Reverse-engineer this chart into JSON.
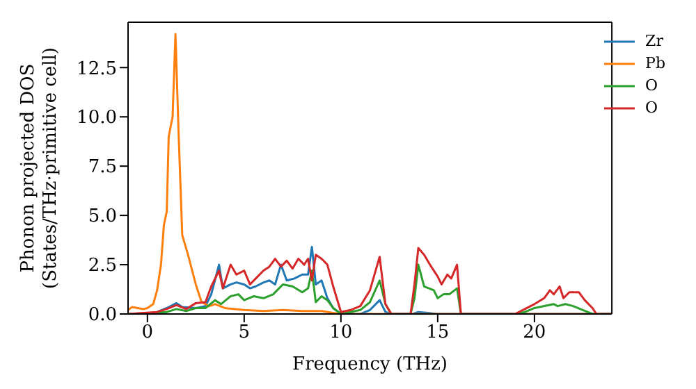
{
  "chart_data": {
    "type": "line",
    "xlabel": "Frequency (THz)",
    "ylabel": "Phonon projected DOS\n(States/THz·primitive cell)",
    "xlim": [
      -1,
      24
    ],
    "ylim": [
      0,
      14.8
    ],
    "xticks": [
      0,
      5,
      10,
      15,
      20
    ],
    "yticks": [
      {
        "value": 0,
        "label": "0.0"
      },
      {
        "value": 2.5,
        "label": "2.5"
      },
      {
        "value": 5,
        "label": "5.0"
      },
      {
        "value": 7.5,
        "label": "7.5"
      },
      {
        "value": 10,
        "label": "10.0"
      },
      {
        "value": 12.5,
        "label": "12.5"
      }
    ],
    "legend": "top right",
    "marker": "none",
    "line_style": "solid",
    "series": [
      {
        "name": "Zr",
        "color": "#1f77b4",
        "x": [
          -1,
          0,
          0.5,
          1,
          1.5,
          1.8,
          2.5,
          3,
          3.3,
          3.7,
          3.9,
          4.3,
          4.6,
          5,
          5.3,
          5.6,
          6,
          6.3,
          6.6,
          6.9,
          7.2,
          7.6,
          8,
          8.3,
          8.5,
          8.7,
          9,
          9.3,
          9.6,
          10,
          11,
          11.5,
          12,
          12.3,
          12.6,
          13.7,
          14,
          14.5,
          15,
          24
        ],
        "values": [
          0,
          0,
          0.1,
          0.3,
          0.55,
          0.35,
          0.3,
          0.4,
          1.0,
          2.5,
          1.3,
          1.5,
          1.6,
          1.5,
          1.3,
          1.4,
          1.6,
          1.7,
          1.5,
          2.5,
          1.7,
          1.8,
          2.0,
          2.0,
          3.4,
          1.5,
          1.7,
          0.8,
          0.3,
          0,
          0,
          0.2,
          0.7,
          0.1,
          0,
          0,
          0.1,
          0.05,
          0,
          0
        ]
      },
      {
        "name": "Pb",
        "color": "#ff7f0e",
        "x": [
          -1,
          -0.8,
          -0.5,
          -0.2,
          0,
          0.3,
          0.5,
          0.7,
          0.85,
          1.0,
          1.1,
          1.3,
          1.45,
          1.6,
          1.8,
          2.1,
          2.5,
          2.8,
          3.2,
          3.5,
          4,
          5,
          6,
          7,
          8,
          9,
          9.6,
          10,
          24
        ],
        "values": [
          0.2,
          0.35,
          0.3,
          0.25,
          0.3,
          0.5,
          1.2,
          2.5,
          4.5,
          5.2,
          9.0,
          10.0,
          14.2,
          9.5,
          4.0,
          3.0,
          1.5,
          0.6,
          0.4,
          0.5,
          0.3,
          0.2,
          0.15,
          0.2,
          0.15,
          0.15,
          0.05,
          0,
          0
        ]
      },
      {
        "name": "O",
        "color": "#2ca02c",
        "x": [
          -1,
          1,
          1.5,
          2,
          2.5,
          3,
          3.5,
          3.8,
          4.3,
          4.7,
          5,
          5.5,
          6,
          6.5,
          7,
          7.5,
          8,
          8.3,
          8.5,
          8.7,
          9,
          9.3,
          9.6,
          10,
          11,
          11.5,
          12,
          12.3,
          12.6,
          13.6,
          13.8,
          14,
          14.3,
          14.8,
          15,
          15.3,
          15.6,
          16,
          16.2,
          19,
          19.5,
          20,
          21,
          21.2,
          21.6,
          22,
          22.5,
          23,
          24
        ],
        "values": [
          0,
          0.1,
          0.25,
          0.15,
          0.3,
          0.3,
          0.7,
          0.5,
          0.9,
          1.0,
          0.7,
          0.9,
          0.8,
          1.0,
          1.5,
          1.4,
          1.1,
          1.3,
          2.2,
          0.6,
          0.9,
          0.7,
          0.3,
          0,
          0.2,
          0.6,
          1.7,
          0.5,
          0,
          0,
          0.8,
          2.5,
          1.4,
          1.2,
          0.8,
          1.0,
          1.0,
          1.3,
          0,
          0,
          0.1,
          0.3,
          0.5,
          0.4,
          0.5,
          0.4,
          0.2,
          0,
          0
        ]
      },
      {
        "name": "O",
        "color": "#d62728",
        "x": [
          -1,
          0.5,
          1,
          1.5,
          2,
          2.5,
          3,
          3.3,
          3.7,
          3.9,
          4.3,
          4.6,
          5,
          5.3,
          5.6,
          6,
          6.3,
          6.6,
          6.9,
          7.2,
          7.5,
          7.8,
          8.1,
          8.3,
          8.5,
          8.7,
          9,
          9.3,
          9.6,
          10,
          10.5,
          11,
          11.5,
          12,
          12.3,
          12.6,
          13.6,
          13.8,
          14,
          14.3,
          14.6,
          14.8,
          15,
          15.2,
          15.5,
          15.7,
          16,
          16.2,
          19,
          20,
          20.5,
          20.8,
          21,
          21.3,
          21.5,
          21.8,
          22.3,
          22.6,
          23,
          23.2,
          24
        ],
        "values": [
          0,
          0.1,
          0.25,
          0.45,
          0.25,
          0.55,
          0.6,
          1.4,
          2.2,
          1.3,
          2.5,
          2.0,
          2.2,
          1.5,
          1.8,
          2.2,
          2.4,
          2.8,
          2.4,
          2.7,
          2.3,
          2.8,
          2.5,
          2.8,
          1.7,
          3.0,
          2.8,
          2.5,
          1.4,
          0.1,
          0.2,
          0.4,
          1.2,
          2.9,
          0.5,
          0,
          0,
          1.5,
          3.35,
          3.0,
          2.5,
          2.2,
          1.9,
          1.5,
          2.0,
          1.8,
          2.5,
          0,
          0,
          0.5,
          0.8,
          1.2,
          1.0,
          1.4,
          0.8,
          1.1,
          1.1,
          0.7,
          0.3,
          0,
          0
        ]
      }
    ]
  }
}
